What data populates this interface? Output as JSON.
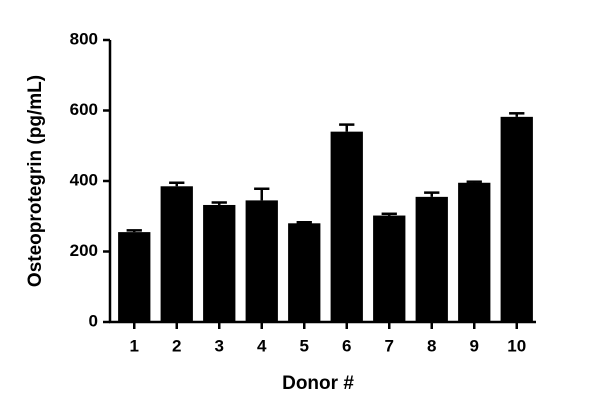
{
  "chart_data": {
    "type": "bar",
    "x_label": "Donor  #",
    "y_label": "Osteoprotegrin (pg/mL)",
    "categories": [
      "1",
      "2",
      "3",
      "4",
      "5",
      "6",
      "7",
      "8",
      "9",
      "10"
    ],
    "values": [
      255,
      385,
      332,
      345,
      280,
      540,
      302,
      355,
      395,
      582
    ],
    "errors": [
      5,
      10,
      7,
      33,
      3,
      20,
      5,
      12,
      3,
      10
    ],
    "color": "#000000",
    "ylim": [
      0,
      800
    ],
    "yticks": [
      0,
      200,
      400,
      600,
      800
    ],
    "grid": false
  }
}
